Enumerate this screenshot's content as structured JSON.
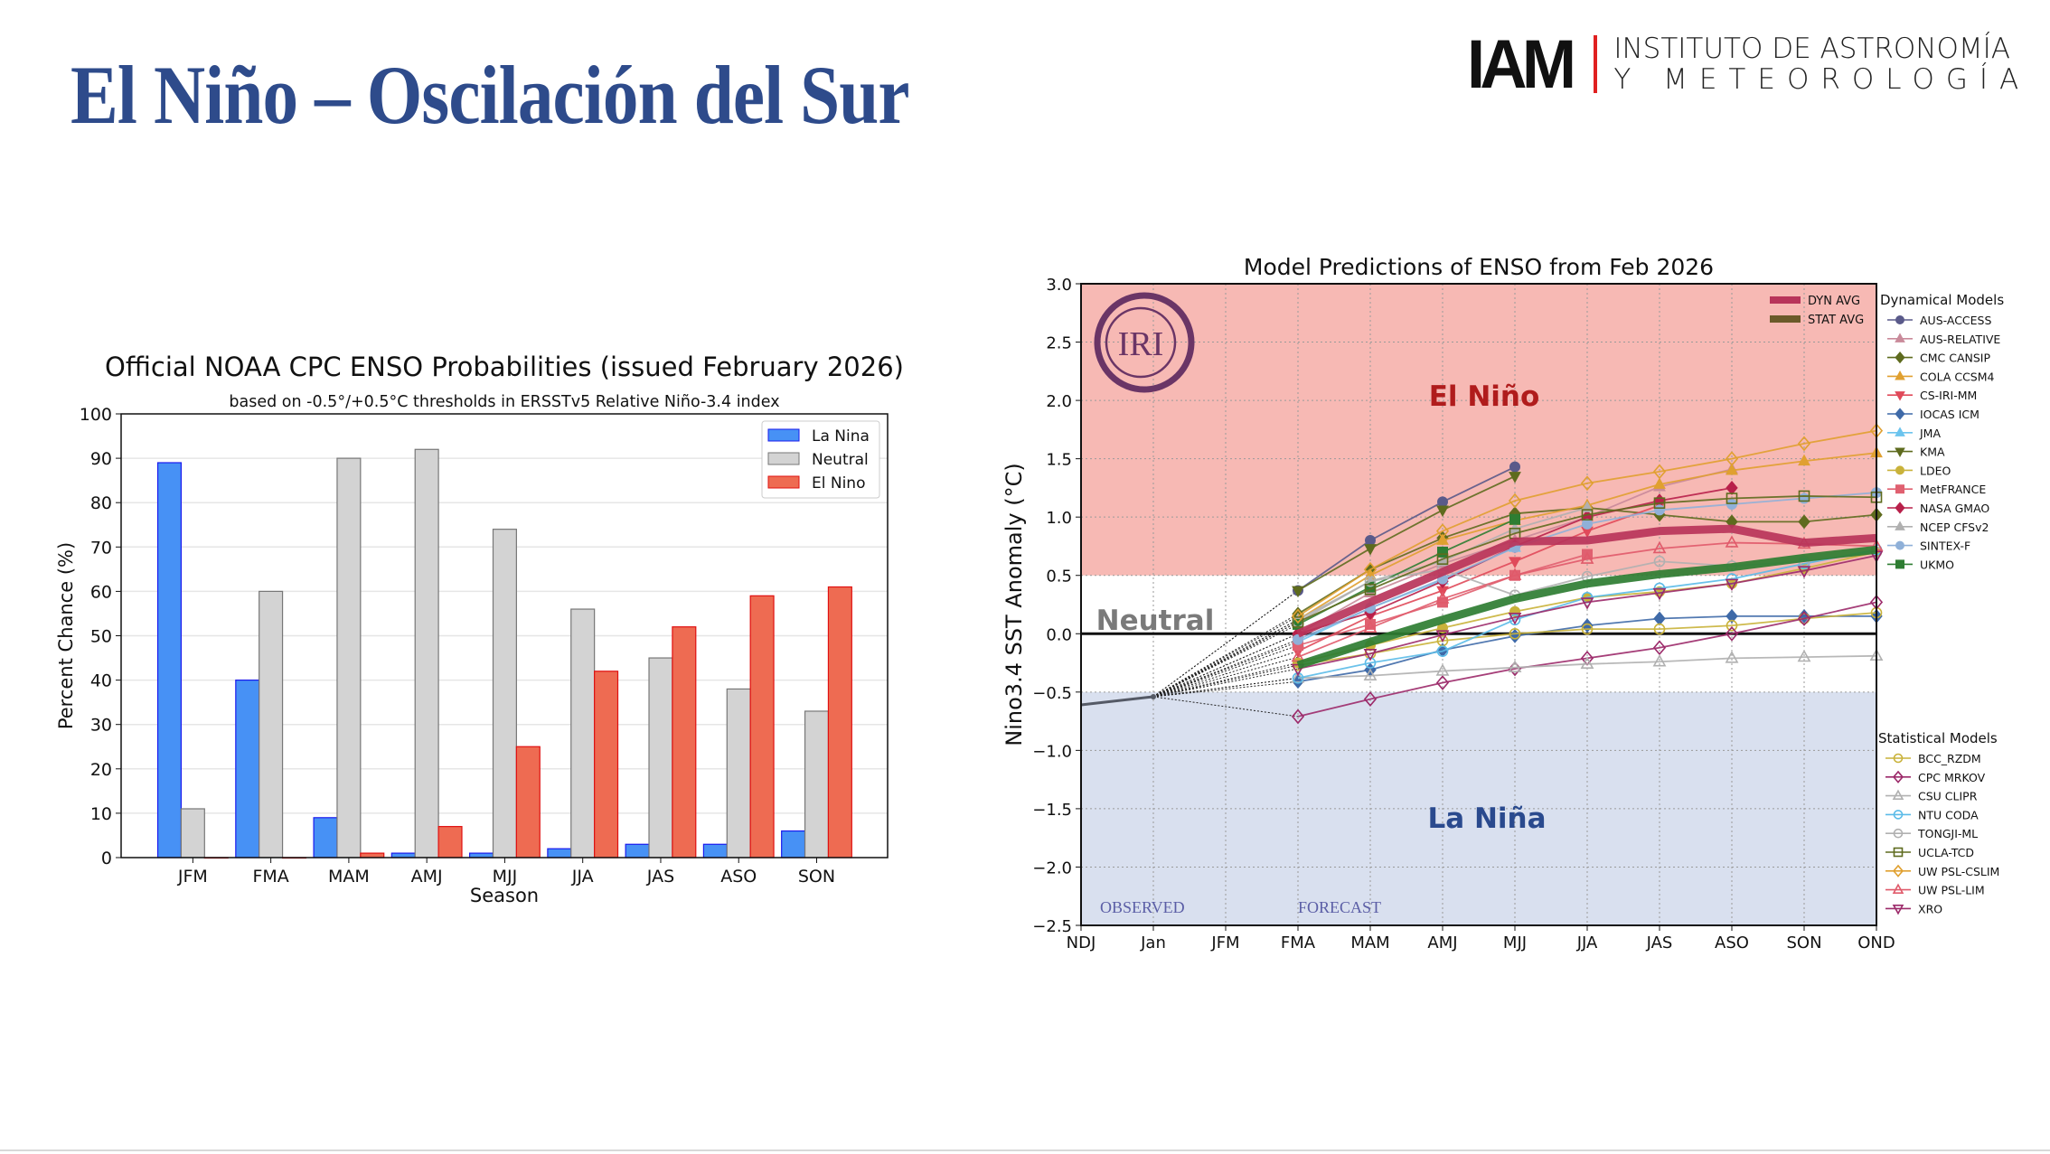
{
  "slide": {
    "title": "El Niño – Oscilación del Sur",
    "logo": {
      "mark": "IAM",
      "line1": "INSTITUTO DE ASTRONOMÍA",
      "line2": "Y METEOROLOGÍA",
      "accent": "#e02020"
    }
  },
  "chart_data": [
    {
      "type": "bar",
      "title": "Official NOAA CPC ENSO Probabilities (issued February 2026)",
      "subtitle": "based on -0.5°/+0.5°C thresholds in ERSSTv5 Relative Niño-3.4 index",
      "xlabel": "Season",
      "ylabel": "Percent Chance (%)",
      "ylim": [
        0,
        100
      ],
      "yticks": [
        "0",
        "10",
        "20",
        "30",
        "40",
        "50",
        "60",
        "70",
        "80",
        "90",
        "100"
      ],
      "grid": true,
      "legend": "top-right",
      "categories": [
        "JFM",
        "FMA",
        "MAM",
        "AMJ",
        "MJJ",
        "JJA",
        "JAS",
        "ASO",
        "SON"
      ],
      "series": [
        {
          "name": "La Nina",
          "color": "#4791f5",
          "edge": "#1a1aee",
          "values": [
            89,
            40,
            9,
            1,
            1,
            2,
            3,
            3,
            6
          ]
        },
        {
          "name": "Neutral",
          "color": "#d3d3d3",
          "edge": "#777777",
          "values": [
            11,
            60,
            90,
            92,
            74,
            56,
            45,
            38,
            33
          ]
        },
        {
          "name": "El Nino",
          "color": "#ee6b52",
          "edge": "#e01010",
          "values": [
            0,
            0,
            1,
            7,
            25,
            42,
            52,
            59,
            61
          ]
        }
      ]
    },
    {
      "type": "line",
      "title": "Model Predictions of ENSO from Feb 2026",
      "ylabel": "Nino3.4 SST Anomaly (°C)",
      "ylim": [
        -2.5,
        3.0
      ],
      "yticks": [
        "3.0",
        "2.5",
        "2.0",
        "1.5",
        "1.0",
        "0.5",
        "0.0",
        "−0.5",
        "−1.0",
        "−1.5",
        "−2.0",
        "−2.5"
      ],
      "ytick_values": [
        3.0,
        2.5,
        2.0,
        1.5,
        1.0,
        0.5,
        0.0,
        -0.5,
        -1.0,
        -1.5,
        -2.0,
        -2.5
      ],
      "grid": true,
      "x": [
        "NDJ",
        "Jan",
        "JFM",
        "FMA",
        "MAM",
        "AMJ",
        "MJJ",
        "JJA",
        "JAS",
        "ASO",
        "SON",
        "OND"
      ],
      "regions": {
        "el_nino": {
          "label": "El Niño",
          "min": 0.5,
          "color": "#f7b9b4",
          "text_color": "#b01c1c"
        },
        "neutral": {
          "label": "Neutral",
          "text_color": "#7a7a7a"
        },
        "la_nina": {
          "label": "La Niña",
          "max": -0.5,
          "color": "#d9e0ef",
          "text_color": "#2a4a8e"
        }
      },
      "phase_labels": {
        "observed": "OBSERVED",
        "forecast": "FORECAST"
      },
      "logo_text": "IRI",
      "observed": {
        "x": [
          "NDJ",
          "Jan"
        ],
        "values": [
          -0.61,
          -0.54
        ]
      },
      "averages_legend": "top-right",
      "averages": [
        {
          "name": "DYN AVG",
          "color": "#b8345a",
          "values": [
            0.0,
            0.27,
            0.53,
            0.79,
            0.8,
            0.88,
            0.9,
            0.78,
            0.82
          ]
        },
        {
          "name": "STAT AVG",
          "color": "#2e7d32",
          "legend_color": "#6b5a2a",
          "values": [
            -0.27,
            -0.07,
            0.12,
            0.3,
            0.43,
            0.51,
            0.57,
            0.65,
            0.72
          ]
        }
      ],
      "forecast_x": [
        "FMA",
        "MAM",
        "AMJ",
        "MJJ",
        "JJA",
        "JAS",
        "ASO",
        "SON",
        "OND"
      ],
      "dynamical_title": "Dynamical Models",
      "dynamical": [
        {
          "name": "AUS-ACCESS",
          "color": "#5a5a8a",
          "marker": "circle",
          "values": [
            0.37,
            0.8,
            1.13,
            1.43
          ]
        },
        {
          "name": "AUS-RELATIVE",
          "color": "#c98a9a",
          "marker": "triangle",
          "values": [
            0.0,
            0.35,
            0.6,
            0.8,
            1.0,
            1.26,
            1.41
          ]
        },
        {
          "name": "CMC CANSIP",
          "color": "#5e6b1e",
          "marker": "diamond",
          "values": [
            0.17,
            0.55,
            0.82,
            1.03,
            1.08,
            1.02,
            0.96,
            0.96,
            1.02
          ]
        },
        {
          "name": "COLA CCSM4",
          "color": "#e0a030",
          "marker": "triangle",
          "values": [
            0.12,
            0.5,
            0.8,
            0.97,
            1.1,
            1.28,
            1.4,
            1.48,
            1.55
          ]
        },
        {
          "name": "CS-IRI-MM",
          "color": "#e04a5a",
          "marker": "triangle-down",
          "values": [
            -0.15,
            0.15,
            0.37,
            0.62,
            0.88,
            1.1
          ]
        },
        {
          "name": "IOCAS ICM",
          "color": "#3f6aa8",
          "marker": "diamond",
          "values": [
            -0.41,
            -0.31,
            -0.14,
            -0.02,
            0.07,
            0.13,
            0.15,
            0.15,
            0.15
          ]
        },
        {
          "name": "JMA",
          "color": "#6cc4ee",
          "marker": "triangle",
          "values": [
            -0.07,
            0.22,
            0.46,
            0.74
          ]
        },
        {
          "name": "KMA",
          "color": "#5e6b1e",
          "marker": "triangle-down",
          "values": [
            0.37,
            0.73,
            1.06,
            1.35
          ]
        },
        {
          "name": "LDEO",
          "color": "#c9b23a",
          "marker": "circle",
          "values": [
            -0.25,
            -0.1,
            0.05,
            0.19,
            0.31,
            0.36,
            0.43,
            0.56,
            0.7
          ]
        },
        {
          "name": "MetFRANCE",
          "color": "#e06070",
          "marker": "square",
          "values": [
            -0.1,
            0.08,
            0.27,
            0.5,
            0.68
          ]
        },
        {
          "name": "NASA GMAO",
          "color": "#b8204a",
          "marker": "diamond",
          "values": [
            0.0,
            0.18,
            0.45,
            0.75,
            1.0,
            1.14,
            1.25
          ]
        },
        {
          "name": "NCEP CFSv2",
          "color": "#b0b0b0",
          "marker": "triangle",
          "values": [
            0.12,
            0.45,
            0.62,
            0.9,
            1.08
          ]
        },
        {
          "name": "SINTEX-F",
          "color": "#8fb0d8",
          "marker": "circle",
          "values": [
            -0.05,
            0.22,
            0.47,
            0.74,
            0.94,
            1.06,
            1.11,
            1.16,
            1.21
          ]
        },
        {
          "name": "UKMO",
          "color": "#2e7d32",
          "marker": "square",
          "values": [
            0.08,
            0.4,
            0.7,
            0.98
          ]
        }
      ],
      "statistical_title": "Statistical Models",
      "statistical": [
        {
          "name": "BCC_RZDM",
          "color": "#c9b23a",
          "marker": "circle",
          "values": [
            -0.27,
            -0.17,
            -0.06,
            0.0,
            0.04,
            0.04,
            0.07,
            0.13,
            0.18
          ]
        },
        {
          "name": "CPC MRKOV",
          "color": "#9c2a6a",
          "marker": "diamond",
          "values": [
            -0.71,
            -0.56,
            -0.42,
            -0.3,
            -0.21,
            -0.12,
            0.0,
            0.13,
            0.27
          ]
        },
        {
          "name": "CSU CLIPR",
          "color": "#b0b0b0",
          "marker": "triangle",
          "values": [
            -0.38,
            -0.36,
            -0.32,
            -0.29,
            -0.26,
            -0.24,
            -0.21,
            -0.2,
            -0.19
          ]
        },
        {
          "name": "NTU CODA",
          "color": "#5bbbe8",
          "marker": "circle",
          "values": [
            -0.38,
            -0.25,
            -0.15,
            0.12,
            0.31,
            0.39,
            0.47,
            0.6,
            0.72
          ]
        },
        {
          "name": "TONGJI-ML",
          "color": "#b0b0b0",
          "marker": "circle",
          "values": [
            0.1,
            0.45,
            0.55,
            0.33,
            0.49,
            0.62,
            0.58,
            0.62,
            0.7
          ]
        },
        {
          "name": "UCLA-TCD",
          "color": "#5e6b1e",
          "marker": "square",
          "values": [
            0.1,
            0.38,
            0.64,
            0.86,
            1.02,
            1.12,
            1.16,
            1.18,
            1.17
          ]
        },
        {
          "name": "UW PSL-CSLIM",
          "color": "#e0a030",
          "marker": "diamond",
          "values": [
            0.15,
            0.55,
            0.88,
            1.14,
            1.29,
            1.39,
            1.5,
            1.63,
            1.74
          ]
        },
        {
          "name": "UW PSL-LIM",
          "color": "#e05a6a",
          "marker": "triangle",
          "values": [
            -0.2,
            0.05,
            0.3,
            0.5,
            0.64,
            0.73,
            0.78,
            0.77,
            0.75
          ]
        },
        {
          "name": "XRO",
          "color": "#9c2a6a",
          "marker": "triangle-down",
          "values": [
            -0.3,
            -0.17,
            -0.01,
            0.14,
            0.27,
            0.35,
            0.43,
            0.54,
            0.67
          ]
        }
      ]
    }
  ]
}
